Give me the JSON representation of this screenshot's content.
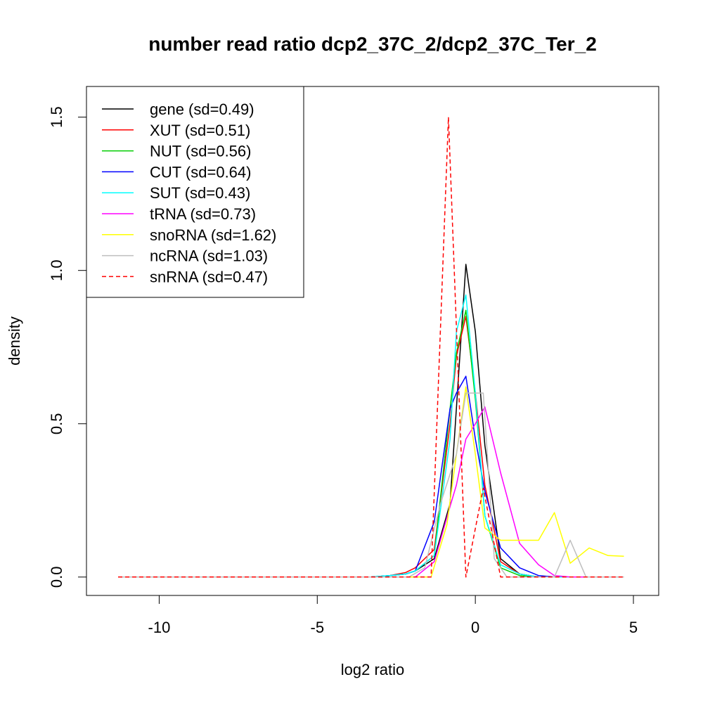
{
  "chart_data": {
    "type": "line",
    "title": "number read ratio dcp2_37C_2/dcp2_37C_Ter_2",
    "xlabel": "log2 ratio",
    "ylabel": "density",
    "xlim": [
      -12.3,
      5.8
    ],
    "ylim": [
      -0.06,
      1.6
    ],
    "xticks": [
      -10,
      -5,
      0,
      5
    ],
    "yticks": [
      0.0,
      0.5,
      1.0,
      1.5
    ],
    "xtick_labels": [
      "-10",
      "-5",
      "0",
      "5"
    ],
    "ytick_labels": [
      "0.0",
      "0.5",
      "1.0",
      "1.5"
    ],
    "grid": false,
    "legend_position": "top-left",
    "series": [
      {
        "name": "gene (sd=0.49)",
        "color": "#000000",
        "dash": "solid",
        "x": [
          -11.3,
          -3.8,
          -3.3,
          -2.7,
          -2.2,
          -1.9,
          -1.3,
          -0.8,
          -0.6,
          -0.3,
          0.0,
          0.3,
          0.8,
          1.4,
          2.0,
          2.5,
          3.0,
          4.7
        ],
        "y": [
          0.0,
          0.0,
          0.0,
          0.005,
          0.01,
          0.02,
          0.06,
          0.24,
          0.55,
          1.02,
          0.8,
          0.43,
          0.06,
          0.01,
          0.0,
          0.0,
          0.0,
          0.0
        ]
      },
      {
        "name": "XUT (sd=0.51)",
        "color": "#ff0000",
        "dash": "solid",
        "x": [
          -11.3,
          -3.8,
          -3.3,
          -2.7,
          -2.2,
          -1.9,
          -1.3,
          -0.8,
          -0.6,
          -0.3,
          0.0,
          0.3,
          0.8,
          1.4,
          2.0,
          2.5,
          3.0,
          4.7
        ],
        "y": [
          0.0,
          0.0,
          0.0,
          0.005,
          0.015,
          0.03,
          0.09,
          0.5,
          0.72,
          0.85,
          0.6,
          0.3,
          0.05,
          0.01,
          0.0,
          0.0,
          0.0,
          0.0
        ]
      },
      {
        "name": "NUT (sd=0.56)",
        "color": "#00cd00",
        "dash": "solid",
        "x": [
          -11.3,
          -3.8,
          -3.3,
          -2.7,
          -2.2,
          -1.9,
          -1.3,
          -0.8,
          -0.6,
          -0.3,
          0.0,
          0.3,
          0.8,
          1.4,
          2.0,
          2.5,
          3.0,
          4.7
        ],
        "y": [
          0.0,
          0.0,
          0.0,
          0.005,
          0.01,
          0.02,
          0.07,
          0.55,
          0.73,
          0.87,
          0.58,
          0.2,
          0.03,
          0.005,
          0.0,
          0.0,
          0.0,
          0.0
        ]
      },
      {
        "name": "CUT (sd=0.64)",
        "color": "#0000ff",
        "dash": "solid",
        "x": [
          -11.3,
          -3.8,
          -3.3,
          -2.7,
          -2.2,
          -1.9,
          -1.3,
          -0.8,
          -0.6,
          -0.3,
          0.0,
          0.3,
          0.8,
          1.4,
          2.0,
          2.5,
          3.0,
          4.7
        ],
        "y": [
          0.0,
          0.0,
          0.0,
          0.005,
          0.01,
          0.02,
          0.18,
          0.55,
          0.6,
          0.655,
          0.45,
          0.28,
          0.095,
          0.03,
          0.005,
          0.0,
          0.0,
          0.0
        ]
      },
      {
        "name": "SUT (sd=0.43)",
        "color": "#00ffff",
        "dash": "solid",
        "x": [
          -11.3,
          -3.8,
          -3.3,
          -2.7,
          -2.2,
          -1.9,
          -1.3,
          -0.8,
          -0.6,
          -0.3,
          0.0,
          0.3,
          0.8,
          1.4,
          2.0,
          2.5,
          3.0,
          4.7
        ],
        "y": [
          0.0,
          0.0,
          0.0,
          0.005,
          0.01,
          0.02,
          0.07,
          0.45,
          0.8,
          0.92,
          0.6,
          0.2,
          0.04,
          0.01,
          0.0,
          0.0,
          0.0,
          0.0
        ]
      },
      {
        "name": "tRNA (sd=0.73)",
        "color": "#ff00ff",
        "dash": "solid",
        "x": [
          -11.3,
          -3.8,
          -3.3,
          -2.7,
          -2.2,
          -1.9,
          -1.3,
          -0.8,
          -0.6,
          -0.3,
          0.0,
          0.3,
          0.8,
          1.4,
          2.0,
          2.5,
          3.0,
          4.7
        ],
        "y": [
          0.0,
          0.0,
          0.0,
          0.0,
          0.0,
          0.0,
          0.05,
          0.23,
          0.3,
          0.45,
          0.5,
          0.555,
          0.34,
          0.11,
          0.04,
          0.005,
          0.0,
          0.0
        ]
      },
      {
        "name": "snoRNA (sd=1.62)",
        "color": "#ffff00",
        "dash": "solid",
        "x": [
          -11.3,
          -1.4,
          -0.9,
          -0.6,
          -0.3,
          0.0,
          0.3,
          0.8,
          1.4,
          2.0,
          2.5,
          3.0,
          3.6,
          4.2,
          4.7
        ],
        "y": [
          0.0,
          0.0,
          0.17,
          0.4,
          0.62,
          0.4,
          0.16,
          0.12,
          0.12,
          0.12,
          0.21,
          0.045,
          0.095,
          0.07,
          0.068
        ]
      },
      {
        "name": "ncRNA (sd=1.03)",
        "color": "#bebebe",
        "dash": "solid",
        "x": [
          -11.3,
          -2.1,
          -1.6,
          -1.1,
          -0.6,
          -0.3,
          0.25,
          0.6,
          1.0,
          1.5,
          2.0,
          2.5,
          3.0,
          3.5,
          4.7
        ],
        "y": [
          0.0,
          0.0,
          0.03,
          0.24,
          0.4,
          0.6,
          0.6,
          0.06,
          0.0,
          0.0,
          0.0,
          0.0,
          0.12,
          0.0,
          0.0
        ]
      },
      {
        "name": "snRNA (sd=0.47)",
        "color": "#ff0000",
        "dash": "dashed",
        "x": [
          -11.3,
          -1.4,
          -0.85,
          -0.3,
          0.25,
          0.8,
          4.7
        ],
        "y": [
          0.0,
          0.0,
          1.5,
          0.0,
          0.29,
          0.0,
          0.0
        ]
      }
    ]
  }
}
